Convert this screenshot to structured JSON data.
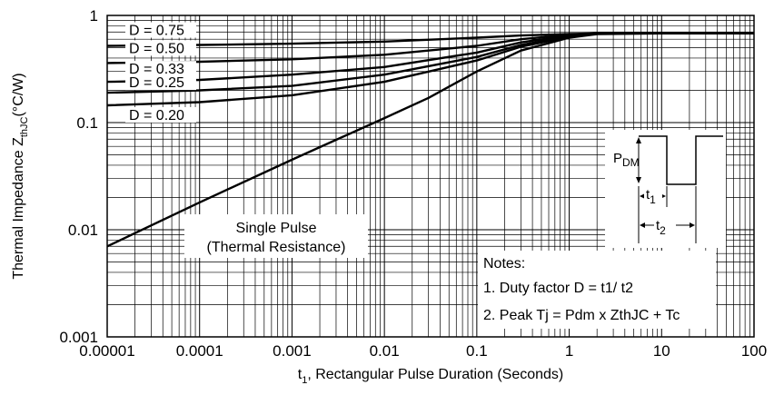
{
  "chart_data": {
    "type": "line",
    "xscale": "log",
    "yscale": "log",
    "xlim": [
      1e-05,
      100
    ],
    "ylim": [
      0.001,
      1
    ],
    "x_ticks": [
      "0.00001",
      "0.0001",
      "0.001",
      "0.01",
      "0.1",
      "1",
      "10",
      "100"
    ],
    "y_ticks": [
      "0.001",
      "0.01",
      "0.1",
      "1"
    ],
    "xlabel": {
      "t": "t",
      "sub": "1",
      "rest": ", Rectangular Pulse Duration (Seconds)"
    },
    "ylabel": {
      "main": "Thermal Impedance Z",
      "sub": "thJC",
      "unit": "(°C/W)"
    },
    "grid": true,
    "series": [
      {
        "name": "D = 0.75",
        "x": [
          1e-05,
          0.0001,
          0.001,
          0.01,
          0.1,
          0.3,
          1,
          2,
          10,
          100
        ],
        "y": [
          0.52,
          0.53,
          0.545,
          0.57,
          0.62,
          0.65,
          0.67,
          0.68,
          0.68,
          0.68
        ]
      },
      {
        "name": "D = 0.50",
        "x": [
          1e-05,
          0.0001,
          0.001,
          0.01,
          0.1,
          0.3,
          1,
          2,
          10,
          100
        ],
        "y": [
          0.36,
          0.37,
          0.39,
          0.43,
          0.52,
          0.6,
          0.66,
          0.68,
          0.68,
          0.68
        ]
      },
      {
        "name": "D = 0.33",
        "x": [
          1e-05,
          0.0001,
          0.001,
          0.01,
          0.1,
          0.3,
          1,
          2,
          10,
          100
        ],
        "y": [
          0.24,
          0.25,
          0.28,
          0.33,
          0.45,
          0.56,
          0.65,
          0.68,
          0.68,
          0.68
        ]
      },
      {
        "name": "D = 0.25",
        "x": [
          1e-05,
          0.0001,
          0.001,
          0.01,
          0.1,
          0.3,
          1,
          2,
          10,
          100
        ],
        "y": [
          0.19,
          0.2,
          0.22,
          0.28,
          0.41,
          0.53,
          0.64,
          0.68,
          0.68,
          0.68
        ]
      },
      {
        "name": "D = 0.20",
        "x": [
          1e-05,
          0.0001,
          0.001,
          0.01,
          0.1,
          0.3,
          1,
          2,
          10,
          100
        ],
        "y": [
          0.145,
          0.155,
          0.18,
          0.24,
          0.38,
          0.51,
          0.63,
          0.68,
          0.68,
          0.68
        ]
      },
      {
        "name": "Single Pulse",
        "x": [
          1e-05,
          0.0001,
          0.001,
          0.01,
          0.03,
          0.1,
          0.3,
          1,
          2,
          10,
          100
        ],
        "y": [
          0.007,
          0.018,
          0.045,
          0.11,
          0.17,
          0.3,
          0.47,
          0.62,
          0.67,
          0.68,
          0.68
        ]
      }
    ],
    "annotations": {
      "single_pulse": [
        "Single Pulse",
        "(Thermal Resistance)"
      ],
      "notes_title": "Notes:",
      "note_1": "1. Duty factor D =  t1/ t2",
      "note_2": "2. Peak Tj = Pdm x ZthJC + Tc",
      "inset": {
        "p": "P",
        "p_sub": "DM",
        "t1": "t",
        "t1_sub": "1",
        "t2": "t",
        "t2_sub": "2"
      }
    }
  }
}
